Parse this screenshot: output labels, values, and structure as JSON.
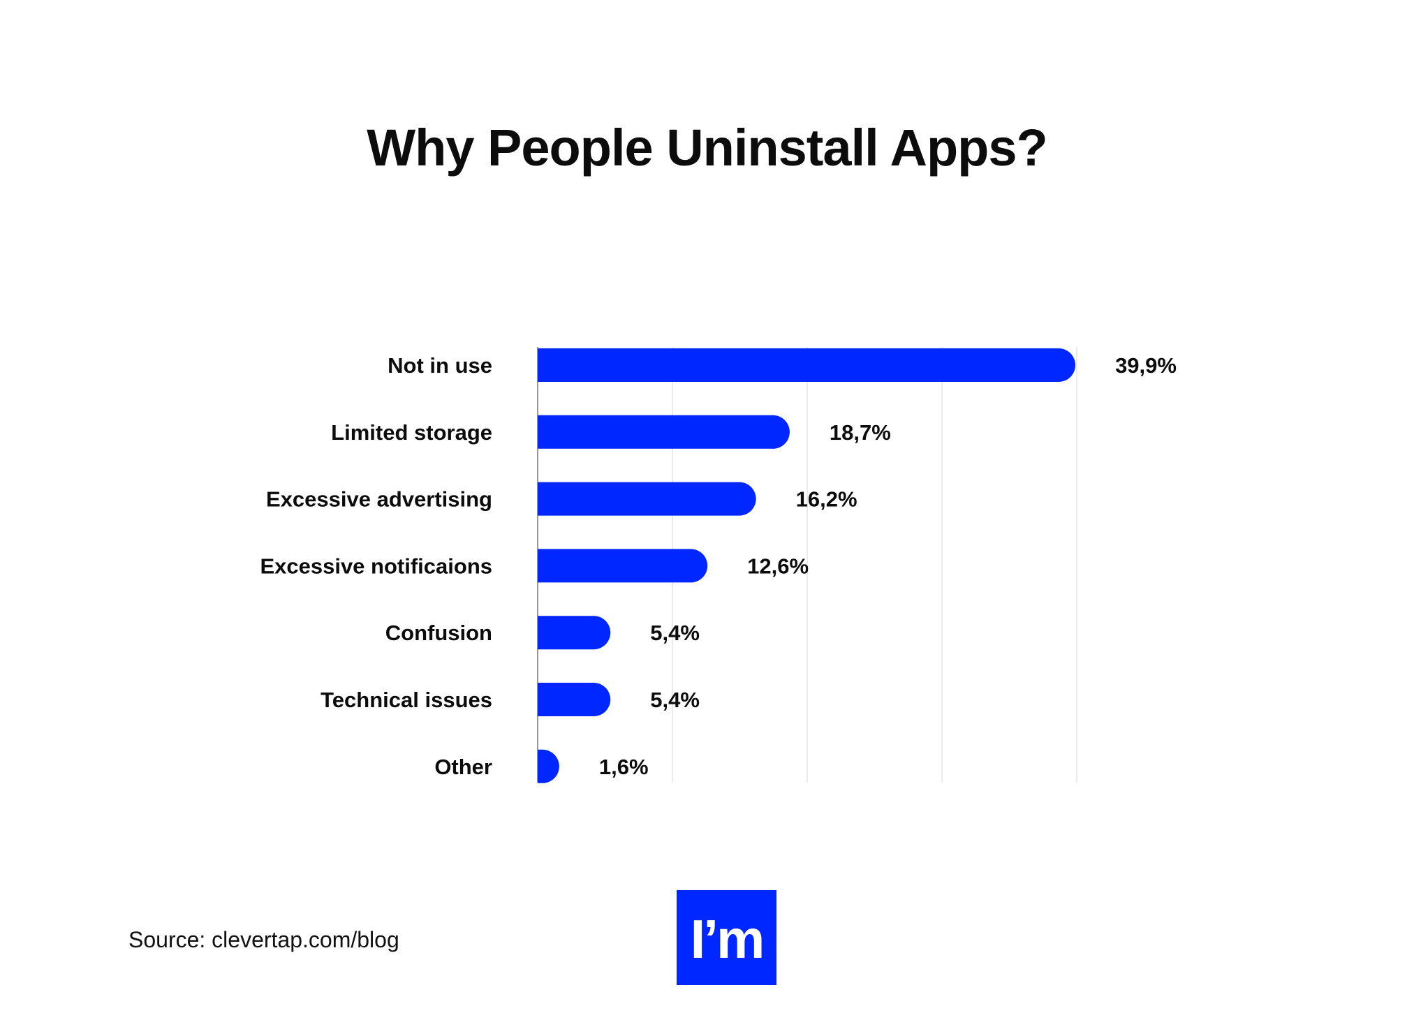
{
  "chart_data": {
    "type": "bar",
    "orientation": "horizontal",
    "title": "Why People Uninstall Apps?",
    "categories": [
      "Not in use",
      "Limited storage",
      "Excessive advertising",
      "Excessive notificaions",
      "Confusion",
      "Technical issues",
      "Other"
    ],
    "values": [
      39.9,
      18.7,
      16.2,
      12.6,
      5.4,
      5.4,
      1.6
    ],
    "value_labels": [
      "39,9%",
      "18,7%",
      "16,2%",
      "12,6%",
      "5,4%",
      "5,4%",
      "1,6%"
    ],
    "xlim": [
      0,
      40
    ],
    "grid": true,
    "bar_color": "#0027ff"
  },
  "footer": {
    "source": "Source: clevertap.com/blog"
  },
  "logo": {
    "text": "I’m",
    "background": "#0027ff"
  }
}
